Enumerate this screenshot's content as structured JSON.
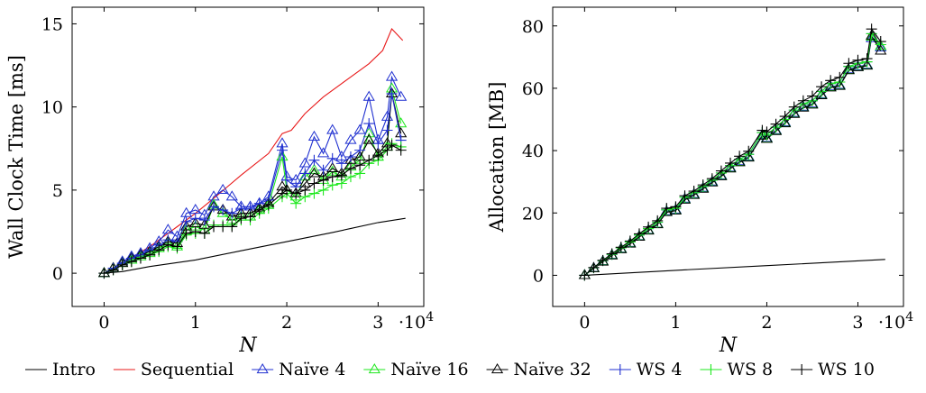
{
  "legend": [
    "Intro",
    "Sequential",
    "Naïve 4",
    "Naïve 16",
    "Naïve 32",
    "WS 4",
    "WS 8",
    "WS 10"
  ],
  "series_styles": [
    {
      "name": "Intro",
      "color": "#000000",
      "marker": "none"
    },
    {
      "name": "Sequential",
      "color": "#e8191a",
      "marker": "none"
    },
    {
      "name": "Naïve 4",
      "color": "#2030d0",
      "marker": "triangle-open"
    },
    {
      "name": "Naïve 16",
      "color": "#1ee81e",
      "marker": "triangle-open"
    },
    {
      "name": "Naïve 32",
      "color": "#000000",
      "marker": "triangle-open"
    },
    {
      "name": "WS 4",
      "color": "#2030d0",
      "marker": "plus"
    },
    {
      "name": "WS 8",
      "color": "#1ee81e",
      "marker": "plus"
    },
    {
      "name": "WS 10",
      "color": "#000000",
      "marker": "plus"
    }
  ],
  "chart_data": [
    {
      "type": "line",
      "ylabel": "Wall Clock Time [ms]",
      "xlabel": "N",
      "x_multiplier": "·10^4",
      "xlim": [
        -3500,
        35000
      ],
      "ylim": [
        -2,
        16
      ],
      "xticks": [
        0,
        10000,
        20000,
        30000
      ],
      "xtick_labels": [
        "0",
        "1",
        "2",
        "3"
      ],
      "yticks": [
        0,
        5,
        10,
        15
      ],
      "ytick_labels": [
        "0",
        "5",
        "10",
        "15"
      ],
      "series": [
        {
          "name": "Intro",
          "x": [
            0,
            2000,
            5000,
            10000,
            15000,
            20000,
            25000,
            30000,
            33000
          ],
          "y": [
            0,
            0.1,
            0.4,
            0.8,
            1.35,
            1.9,
            2.45,
            3.05,
            3.3
          ]
        },
        {
          "name": "Sequential",
          "x": [
            0,
            2000,
            5000,
            8000,
            10000,
            12000,
            15000,
            18000,
            19500,
            20500,
            22000,
            24000,
            26000,
            28000,
            29000,
            30500,
            31500,
            32700
          ],
          "y": [
            0,
            0.6,
            1.6,
            2.8,
            3.6,
            4.5,
            5.9,
            7.2,
            8.4,
            8.6,
            9.6,
            10.6,
            11.4,
            12.2,
            12.6,
            13.4,
            14.7,
            14.0
          ]
        },
        {
          "name": "Naïve 4",
          "x": [
            0,
            1000,
            2000,
            3000,
            4000,
            5000,
            6000,
            7000,
            8000,
            9000,
            10000,
            11000,
            12000,
            13000,
            14000,
            15000,
            16000,
            17000,
            18000,
            19500,
            20000,
            21000,
            22000,
            23000,
            24000,
            25000,
            26000,
            27000,
            28000,
            29000,
            30000,
            31000,
            31500,
            32500
          ],
          "y": [
            0,
            0.3,
            0.7,
            1.0,
            1.2,
            1.5,
            1.9,
            2.6,
            2.2,
            3.6,
            3.8,
            3.5,
            4.6,
            5.0,
            4.6,
            4.0,
            4.0,
            4.2,
            4.6,
            7.8,
            5.8,
            5.6,
            6.6,
            8.2,
            7.2,
            8.6,
            7.0,
            8.0,
            8.6,
            10.6,
            8.0,
            9.4,
            11.8,
            10.6
          ]
        },
        {
          "name": "Naïve 16",
          "x": [
            0,
            1000,
            2000,
            3000,
            4000,
            5000,
            6000,
            7000,
            8000,
            9000,
            10000,
            11000,
            12000,
            13000,
            14000,
            15000,
            16000,
            17000,
            18000,
            19500,
            20000,
            21000,
            22000,
            23000,
            24000,
            25000,
            26000,
            27000,
            28000,
            29000,
            30000,
            31000,
            31500,
            32500
          ],
          "y": [
            0,
            0.3,
            0.6,
            0.8,
            1.0,
            1.2,
            1.5,
            1.8,
            1.6,
            2.6,
            2.8,
            2.6,
            4.1,
            3.6,
            3.2,
            3.4,
            3.4,
            3.8,
            4.1,
            7.0,
            5.0,
            4.6,
            5.8,
            6.2,
            5.6,
            6.1,
            5.8,
            6.4,
            6.8,
            8.4,
            7.0,
            7.6,
            11.1,
            9.0
          ]
        },
        {
          "name": "Naïve 32",
          "x": [
            0,
            1000,
            2000,
            3000,
            4000,
            5000,
            6000,
            7000,
            8000,
            9000,
            10000,
            11000,
            12000,
            13000,
            14000,
            15000,
            16000,
            17000,
            18000,
            19500,
            20000,
            21000,
            22000,
            23000,
            24000,
            25000,
            26000,
            27000,
            28000,
            29000,
            30000,
            31000,
            31500,
            32500
          ],
          "y": [
            0,
            0.3,
            0.6,
            0.9,
            1.1,
            1.3,
            1.6,
            1.9,
            1.8,
            2.8,
            3.0,
            2.9,
            4.0,
            3.8,
            3.4,
            3.6,
            3.6,
            3.9,
            4.2,
            5.2,
            5.0,
            4.8,
            5.4,
            6.0,
            5.8,
            6.3,
            6.0,
            6.8,
            7.0,
            8.0,
            7.2,
            7.8,
            10.8,
            8.4
          ]
        },
        {
          "name": "WS 4",
          "x": [
            0,
            1000,
            2000,
            3000,
            4000,
            5000,
            6000,
            7000,
            8000,
            9000,
            10000,
            11000,
            12000,
            13000,
            14000,
            15000,
            16000,
            17000,
            18000,
            19500,
            20000,
            21000,
            22000,
            23000,
            24000,
            25000,
            26000,
            27000,
            28000,
            29000,
            30000,
            31000,
            31500,
            32500
          ],
          "y": [
            0,
            0.3,
            0.6,
            0.9,
            1.1,
            1.4,
            1.7,
            2.0,
            1.9,
            3.1,
            3.3,
            3.2,
            4.0,
            3.8,
            3.6,
            3.9,
            3.9,
            4.2,
            4.4,
            7.4,
            5.6,
            5.2,
            6.0,
            6.8,
            6.2,
            6.9,
            6.6,
            7.0,
            7.4,
            9.0,
            7.8,
            8.6,
            10.8,
            8.0
          ]
        },
        {
          "name": "WS 8",
          "x": [
            0,
            1000,
            2000,
            3000,
            4000,
            5000,
            6000,
            7000,
            8000,
            9000,
            10000,
            11000,
            12000,
            13000,
            14000,
            15000,
            16000,
            17000,
            18000,
            19500,
            20000,
            21000,
            22000,
            23000,
            24000,
            25000,
            26000,
            27000,
            28000,
            29000,
            30000,
            31000,
            31500,
            32500
          ],
          "y": [
            0,
            0.2,
            0.5,
            0.7,
            0.9,
            1.1,
            1.3,
            1.6,
            1.5,
            2.3,
            2.4,
            2.4,
            2.9,
            2.9,
            2.9,
            3.2,
            3.2,
            3.6,
            3.9,
            4.6,
            4.8,
            4.2,
            4.6,
            4.8,
            5.0,
            5.3,
            5.4,
            5.8,
            6.0,
            6.6,
            6.8,
            7.4,
            7.8,
            7.6
          ]
        },
        {
          "name": "WS 10",
          "x": [
            0,
            1000,
            2000,
            3000,
            4000,
            5000,
            6000,
            7000,
            8000,
            9000,
            10000,
            11000,
            12000,
            13000,
            14000,
            15000,
            16000,
            17000,
            18000,
            19500,
            20000,
            21000,
            22000,
            23000,
            24000,
            25000,
            26000,
            27000,
            28000,
            29000,
            30000,
            31000,
            31500,
            32500
          ],
          "y": [
            0,
            0.2,
            0.5,
            0.7,
            0.9,
            1.1,
            1.4,
            1.7,
            1.6,
            2.4,
            2.5,
            2.4,
            2.8,
            2.8,
            2.8,
            3.3,
            3.4,
            3.8,
            4.1,
            4.8,
            5.0,
            4.8,
            5.0,
            5.4,
            5.6,
            5.8,
            5.9,
            6.3,
            6.5,
            6.8,
            7.1,
            7.4,
            7.7,
            7.4
          ]
        }
      ]
    },
    {
      "type": "line",
      "ylabel": "Allocation [MB]",
      "xlabel": "N",
      "x_multiplier": "·10^4",
      "xlim": [
        -3500,
        35000
      ],
      "ylim": [
        -10,
        86
      ],
      "xticks": [
        0,
        10000,
        20000,
        30000
      ],
      "xtick_labels": [
        "0",
        "1",
        "2",
        "3"
      ],
      "yticks": [
        0,
        20,
        40,
        60,
        80
      ],
      "ytick_labels": [
        "0",
        "20",
        "40",
        "60",
        "80"
      ],
      "series": [
        {
          "name": "Intro",
          "x": [
            0,
            10000,
            20000,
            33000
          ],
          "y": [
            0,
            1.6,
            3.1,
            5.1
          ]
        },
        {
          "name": "Naïve 4",
          "x": [
            0,
            1000,
            2000,
            3000,
            4000,
            5000,
            6000,
            7000,
            8000,
            9000,
            10000,
            11000,
            12000,
            13000,
            14000,
            15000,
            16000,
            17000,
            18000,
            19500,
            20000,
            21000,
            22000,
            23000,
            24000,
            25000,
            26000,
            27000,
            28000,
            29000,
            30000,
            31000,
            31500,
            32500
          ],
          "y": [
            0,
            2.3,
            4.5,
            6.5,
            8.5,
            10.3,
            12.5,
            14.5,
            16.5,
            20.5,
            21,
            24.5,
            26,
            28,
            30,
            32,
            34.5,
            36.5,
            38,
            45,
            44,
            46.5,
            49,
            52,
            54,
            55,
            58,
            60.5,
            61,
            66,
            67,
            67.5,
            76,
            73
          ]
        },
        {
          "name": "Naïve 16",
          "x": [
            0,
            1000,
            2000,
            3000,
            4000,
            5000,
            6000,
            7000,
            8000,
            9000,
            10000,
            11000,
            12000,
            13000,
            14000,
            15000,
            16000,
            17000,
            18000,
            19500,
            20000,
            21000,
            22000,
            23000,
            24000,
            25000,
            26000,
            27000,
            28000,
            29000,
            30000,
            31000,
            31500,
            32500
          ],
          "y": [
            0,
            2.2,
            4.4,
            6.4,
            8.4,
            10.2,
            12.4,
            14.4,
            16.4,
            20.3,
            20.8,
            24.3,
            25.8,
            27.8,
            29.8,
            31.8,
            34.3,
            36.3,
            37.8,
            44.8,
            43.8,
            46.3,
            48.8,
            51.8,
            53.8,
            54.8,
            57.8,
            60.3,
            60.8,
            65.8,
            66.8,
            67.3,
            76.5,
            73.5
          ]
        },
        {
          "name": "Naïve 32",
          "x": [
            0,
            1000,
            2000,
            3000,
            4000,
            5000,
            6000,
            7000,
            8000,
            9000,
            10000,
            11000,
            12000,
            13000,
            14000,
            15000,
            16000,
            17000,
            18000,
            19500,
            20000,
            21000,
            22000,
            23000,
            24000,
            25000,
            26000,
            27000,
            28000,
            29000,
            30000,
            31000,
            31500,
            32500
          ],
          "y": [
            0,
            2.2,
            4.3,
            6.3,
            8.3,
            10.1,
            12.3,
            14.3,
            16.3,
            20.2,
            20.7,
            24.2,
            25.7,
            27.7,
            29.7,
            31.7,
            34.2,
            36.2,
            37.7,
            44.7,
            43.7,
            46.2,
            48.7,
            51.7,
            53.7,
            54.7,
            57.7,
            60.2,
            60.7,
            65.7,
            66.7,
            67.2,
            76.8,
            72.0
          ]
        },
        {
          "name": "WS 4",
          "x": [
            0,
            1000,
            2000,
            3000,
            4000,
            5000,
            6000,
            7000,
            8000,
            9000,
            10000,
            11000,
            12000,
            13000,
            14000,
            15000,
            16000,
            17000,
            18000,
            19500,
            20000,
            21000,
            22000,
            23000,
            24000,
            25000,
            26000,
            27000,
            28000,
            29000,
            30000,
            31000,
            31500,
            32500
          ],
          "y": [
            0,
            2.4,
            4.7,
            6.7,
            8.8,
            10.7,
            12.9,
            15,
            17,
            21,
            21.5,
            25,
            26.5,
            28.5,
            30.5,
            32.8,
            35.2,
            37.2,
            38.8,
            45.8,
            45,
            47.5,
            50,
            53,
            55,
            56,
            59,
            61.5,
            62,
            67,
            68,
            68.5,
            77.5,
            74
          ]
        },
        {
          "name": "WS 8",
          "x": [
            0,
            1000,
            2000,
            3000,
            4000,
            5000,
            6000,
            7000,
            8000,
            9000,
            10000,
            11000,
            12000,
            13000,
            14000,
            15000,
            16000,
            17000,
            18000,
            19500,
            20000,
            21000,
            22000,
            23000,
            24000,
            25000,
            26000,
            27000,
            28000,
            29000,
            30000,
            31000,
            31500,
            32500
          ],
          "y": [
            0,
            2.4,
            4.7,
            6.7,
            8.8,
            10.7,
            12.9,
            15,
            17,
            21,
            21.5,
            25,
            26.5,
            28.5,
            30.5,
            32.8,
            35.2,
            37.2,
            38.8,
            45.8,
            45,
            47.5,
            50,
            53,
            55,
            56,
            59,
            61.5,
            62,
            67,
            68,
            68.5,
            77.5,
            74
          ]
        },
        {
          "name": "WS 10",
          "x": [
            0,
            1000,
            2000,
            3000,
            4000,
            5000,
            6000,
            7000,
            8000,
            9000,
            10000,
            11000,
            12000,
            13000,
            14000,
            15000,
            16000,
            17000,
            18000,
            19500,
            20000,
            21000,
            22000,
            23000,
            24000,
            25000,
            26000,
            27000,
            28000,
            29000,
            30000,
            31000,
            31500,
            32500
          ],
          "y": [
            0,
            2.5,
            4.8,
            6.9,
            9.0,
            11.0,
            13.3,
            15.5,
            17.5,
            21.5,
            22,
            25.5,
            27,
            29,
            31,
            33.5,
            36,
            38.2,
            39.8,
            46.5,
            46,
            48.5,
            51,
            54,
            56,
            57.5,
            60.5,
            62.5,
            63.5,
            68,
            69,
            69.5,
            79,
            75
          ]
        }
      ]
    }
  ]
}
